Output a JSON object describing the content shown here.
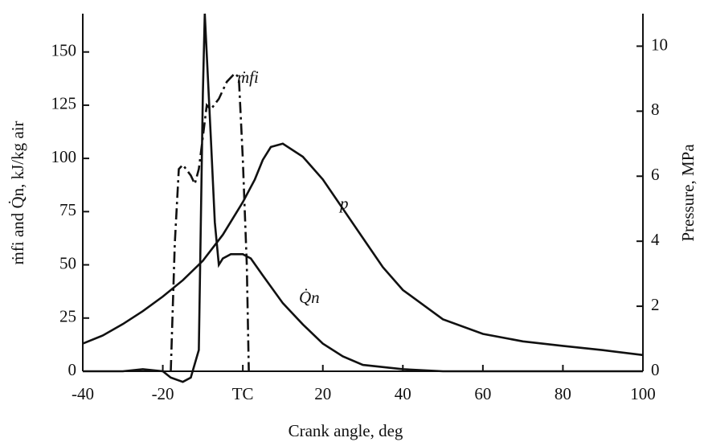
{
  "chart_data": {
    "type": "line",
    "x_label": "Crank angle, deg",
    "y_label": "ṁfi and Q̇n, kJ/kg air",
    "y2_label": "Pressure, MPa",
    "xlim": [
      -40,
      100
    ],
    "xticks": [
      -40,
      -20,
      {
        "value": 0,
        "label": "TC"
      },
      20,
      40,
      60,
      80,
      100
    ],
    "ylim": [
      0,
      168
    ],
    "yticks": [
      0,
      25,
      50,
      75,
      100,
      125,
      150
    ],
    "y2lim": [
      0,
      11
    ],
    "y2ticks": [
      0,
      2,
      4,
      6,
      8,
      10
    ],
    "series": [
      {
        "name": "p",
        "color": "#111111",
        "axis": "y2",
        "x": [
          -40,
          -35,
          -30,
          -25,
          -20,
          -15,
          -10,
          -5,
          0,
          3,
          5,
          7,
          10,
          15,
          20,
          25,
          30,
          35,
          40,
          50,
          60,
          70,
          80,
          90,
          100
        ],
        "values": [
          0.85,
          1.1,
          1.45,
          1.85,
          2.3,
          2.8,
          3.4,
          4.2,
          5.2,
          5.9,
          6.5,
          6.9,
          7.0,
          6.6,
          5.9,
          5.0,
          4.1,
          3.2,
          2.5,
          1.6,
          1.15,
          0.92,
          0.78,
          0.65,
          0.5
        ]
      },
      {
        "name": "ṁfi",
        "color": "#111111",
        "x": [
          -18,
          -17,
          -16,
          -15,
          -13,
          -12,
          -11,
          -10,
          -9,
          -8,
          -6,
          -4,
          -2,
          -1,
          0,
          1,
          1.5
        ],
        "values": [
          0,
          60,
          95,
          97,
          92,
          88,
          95,
          110,
          125,
          123,
          128,
          136,
          140,
          138,
          100,
          50,
          0
        ]
      },
      {
        "name": "Q̇n",
        "color": "#111111",
        "x": [
          -40,
          -30,
          -25,
          -20,
          -18,
          -15,
          -13,
          -11,
          -10.5,
          -10,
          -9.5,
          -8,
          -7,
          -6,
          -5,
          -3,
          0,
          2,
          5,
          10,
          15,
          20,
          25,
          30,
          40,
          50,
          100
        ],
        "values": [
          0,
          0,
          1,
          0,
          -3,
          -5,
          -3,
          10,
          70,
          130,
          168,
          110,
          70,
          50,
          53,
          55,
          55,
          53,
          45,
          32,
          22,
          13,
          7,
          3,
          1,
          0,
          0
        ]
      }
    ]
  }
}
